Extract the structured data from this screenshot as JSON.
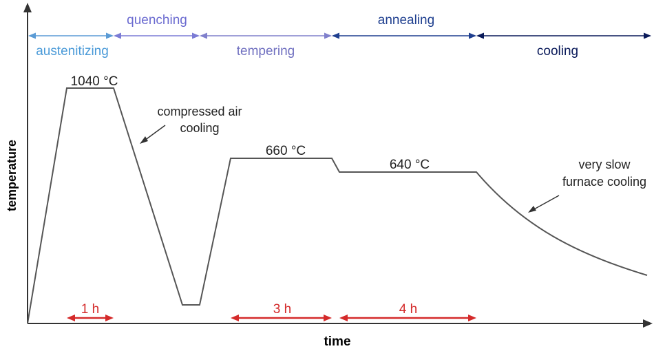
{
  "axes": {
    "x_label": "time",
    "y_label": "temperature"
  },
  "phases": [
    {
      "label": "austenitizing"
    },
    {
      "label": "quenching"
    },
    {
      "label": "tempering"
    },
    {
      "label": "annealing"
    },
    {
      "label": "cooling"
    }
  ],
  "temperatures": [
    "1040 °C",
    "660 °C",
    "640 °C"
  ],
  "annotations": [
    {
      "lines": [
        "compressed air",
        "cooling"
      ]
    },
    {
      "lines": [
        "very slow",
        "furnace cooling"
      ]
    }
  ],
  "durations": [
    "1 h",
    "3 h",
    "4 h"
  ]
}
